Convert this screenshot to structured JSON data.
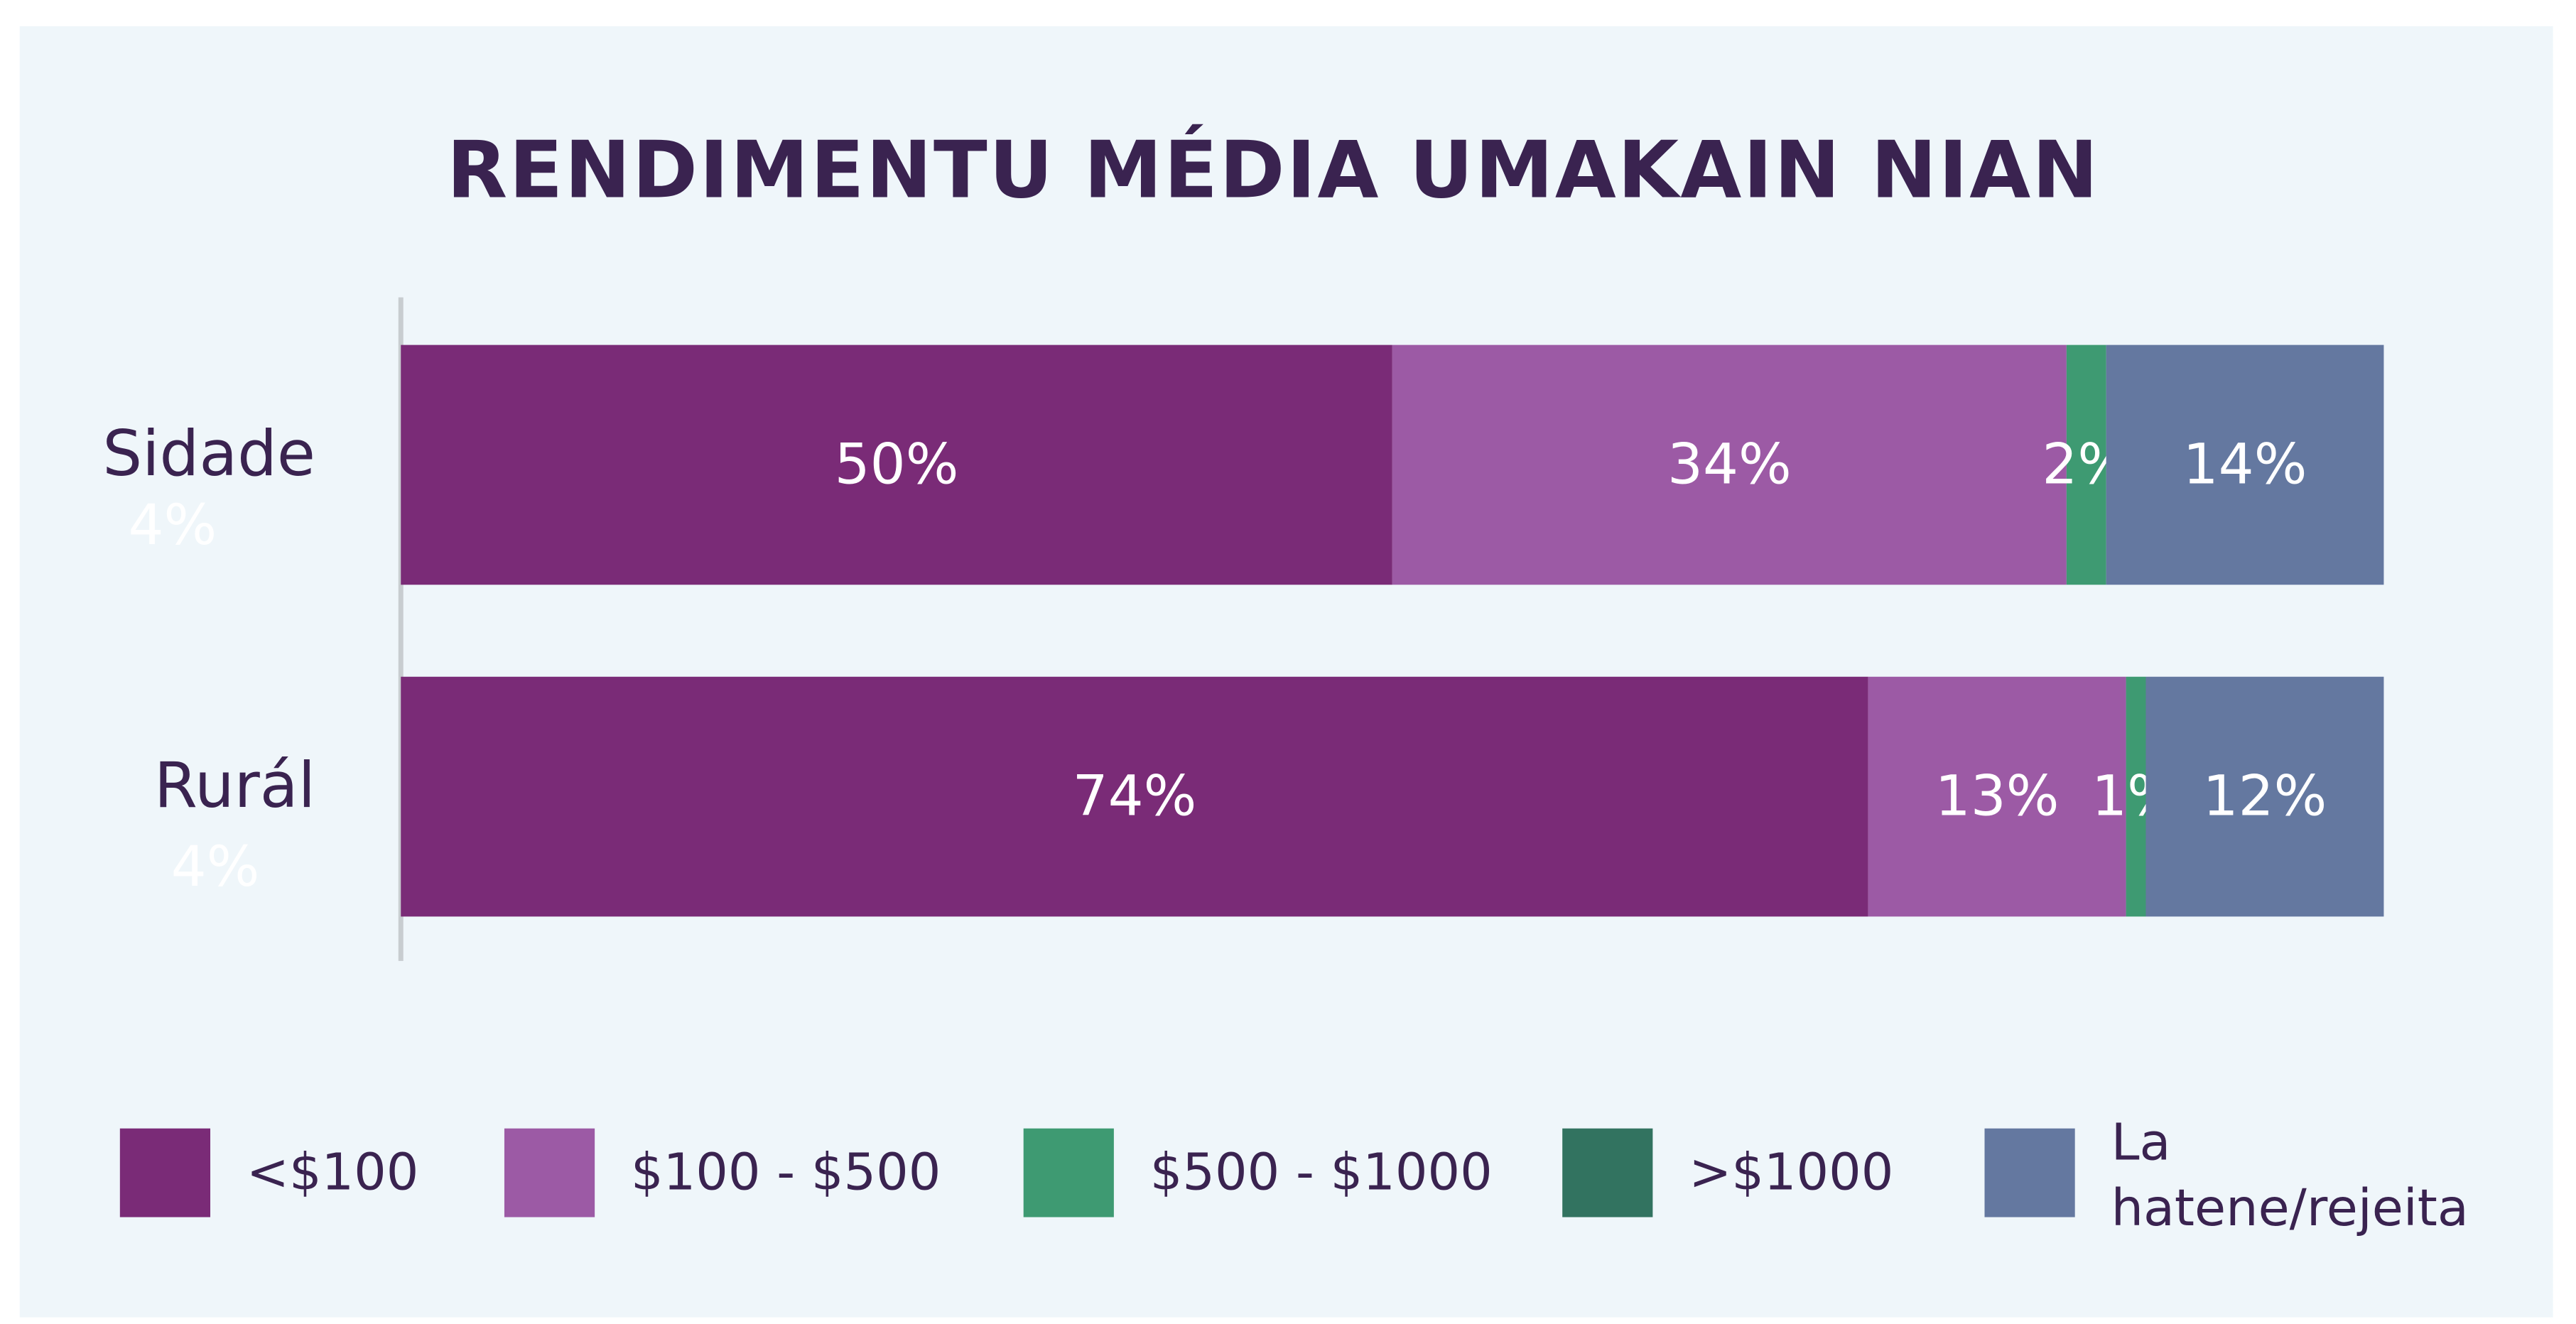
{
  "chart_data": {
    "type": "stacked_barh",
    "title": "RENDIMENTU MÉDIA UMAKAIN NIAN",
    "categories": [
      "Sidade",
      "Rurál"
    ],
    "xlim": [
      0,
      100
    ],
    "series": [
      {
        "name": "<$100",
        "color": "#7a2b77",
        "values": [
          50,
          74
        ],
        "value_labels": [
          "50%",
          "74%"
        ]
      },
      {
        "name": "$100 - $500",
        "color": "#9c5aa5",
        "values": [
          34,
          13
        ],
        "value_labels": [
          "34%",
          "13%"
        ]
      },
      {
        "name": "$500 - $1000",
        "color": "#3e9a72",
        "values": [
          2,
          1
        ],
        "value_labels": [
          "2%",
          "1%"
        ]
      },
      {
        "name": ">$1000",
        "color": "#327360",
        "values": [
          4,
          4
        ],
        "value_labels": [
          "4%",
          "4%"
        ]
      },
      {
        "name": "La hatene/rejeita",
        "color": "#6478a0",
        "values": [
          14,
          12
        ],
        "value_labels": [
          "14%",
          "12%"
        ]
      }
    ],
    "legend": "bottom"
  }
}
